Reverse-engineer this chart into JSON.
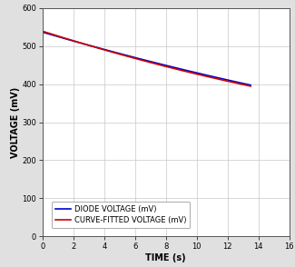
{
  "title": "",
  "xlabel": "TIME (s)",
  "ylabel": "VOLTAGE (mV)",
  "xlim": [
    0,
    16
  ],
  "ylim": [
    0,
    600
  ],
  "xticks": [
    0,
    2,
    4,
    6,
    8,
    10,
    12,
    14,
    16
  ],
  "yticks": [
    0,
    100,
    200,
    300,
    400,
    500,
    600
  ],
  "grid_color": "#c8c8c8",
  "plot_bg_color": "#ffffff",
  "outer_bg_color": "#e0e0e0",
  "diode_color": "#0000cc",
  "fitted_color": "#cc0000",
  "diode_label": "DIODE VOLTAGE (mV)",
  "fitted_label": "CURVE-FITTED VOLTAGE (mV)",
  "diode_x": [
    0,
    1,
    2,
    3,
    4,
    5,
    6,
    7,
    8,
    9,
    10,
    11,
    12,
    13,
    13.5
  ],
  "diode_y": [
    535,
    524,
    514,
    503,
    492,
    481,
    470,
    459,
    449,
    439,
    428,
    418,
    410,
    403,
    399
  ],
  "fitted_x": [
    0,
    1,
    2,
    3,
    4,
    5,
    6,
    7,
    8,
    9,
    10,
    11,
    12,
    13,
    13.5
  ],
  "fitted_y": [
    537,
    526,
    514,
    503,
    491,
    480,
    468,
    457,
    446,
    435,
    425,
    415,
    406,
    400,
    397
  ],
  "legend_loc": "lower left",
  "font_size": 7,
  "label_fontsize": 7,
  "tick_fontsize": 6,
  "line_width": 1.2
}
